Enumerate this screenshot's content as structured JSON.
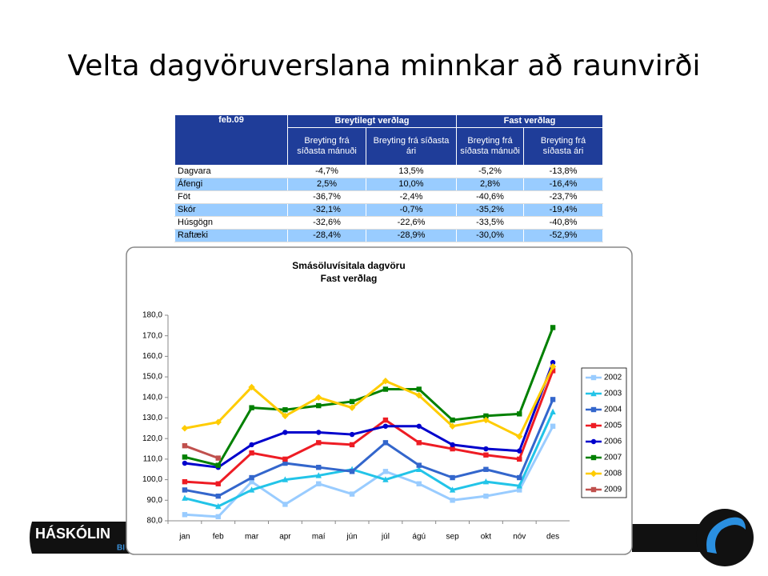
{
  "title": "Velta dagvöruverslana minnkar að raunvirði",
  "table": {
    "corner": "feb.09",
    "groups": [
      "Breytilegt verðlag",
      "Fast verðlag"
    ],
    "subheaders": [
      "Breyting frá síðasta mánuði",
      "Breyting frá síðasta ári",
      "Breyting frá síðasta mánuði",
      "Breyting frá síðasta ári"
    ],
    "rows": [
      [
        "Dagvara",
        "-4,7%",
        "13,5%",
        "-5,2%",
        "-13,8%"
      ],
      [
        "Áfengi",
        "2,5%",
        "10,0%",
        "2,8%",
        "-16,4%"
      ],
      [
        "Föt",
        "-36,7%",
        "-2,4%",
        "-40,6%",
        "-23,7%"
      ],
      [
        "Skór",
        "-32,1%",
        "-0,7%",
        "-35,2%",
        "-19,4%"
      ],
      [
        "Húsgögn",
        "-32,6%",
        "-22,6%",
        "-33,5%",
        "-40,8%"
      ],
      [
        "Raftæki",
        "-28,4%",
        "-28,9%",
        "-30,0%",
        "-52,9%"
      ]
    ]
  },
  "logo": {
    "name": "HÁSKÓLIN",
    "sub": "BI"
  },
  "chart_data": {
    "type": "line",
    "title": "Smásöluvísitala dagvöru",
    "subtitle": "Fast verðlag",
    "categories": [
      "jan",
      "feb",
      "mar",
      "apr",
      "maí",
      "jún",
      "júl",
      "ágú",
      "sep",
      "okt",
      "nóv",
      "des"
    ],
    "ylim": [
      80,
      180
    ],
    "yticks": [
      {
        "value": 80,
        "label": "80,0"
      },
      {
        "value": 90,
        "label": "90,0"
      },
      {
        "value": 100,
        "label": "100,0"
      },
      {
        "value": 110,
        "label": "110,0"
      },
      {
        "value": 120,
        "label": "120,0"
      },
      {
        "value": 130,
        "label": "130,0"
      },
      {
        "value": 140,
        "label": "140,0"
      },
      {
        "value": 150,
        "label": "150,0"
      },
      {
        "value": 160,
        "label": "160,0"
      },
      {
        "value": 170,
        "label": "170,0"
      },
      {
        "value": 180,
        "label": "180,0"
      }
    ],
    "grid": false,
    "legend": "right",
    "series": [
      {
        "name": "2002",
        "color": "#99ccff",
        "marker": "square",
        "values": [
          83,
          82,
          99,
          88,
          98,
          93,
          104,
          98,
          90,
          92,
          95,
          126
        ]
      },
      {
        "name": "2003",
        "color": "#22c4e8",
        "marker": "triangle",
        "values": [
          91,
          87,
          95,
          100,
          102,
          105,
          100,
          105,
          95,
          99,
          97,
          133
        ]
      },
      {
        "name": "2004",
        "color": "#3366cc",
        "marker": "square",
        "values": [
          95,
          92,
          101,
          108,
          106,
          104,
          118,
          107,
          101,
          105,
          101,
          139
        ]
      },
      {
        "name": "2005",
        "color": "#ee1c24",
        "marker": "square",
        "values": [
          99,
          98,
          113,
          110,
          118,
          117,
          129,
          118,
          115,
          112,
          110,
          153
        ]
      },
      {
        "name": "2006",
        "color": "#0000cc",
        "marker": "circle",
        "values": [
          108,
          106,
          117,
          123,
          123,
          122,
          126,
          126,
          117,
          115,
          114,
          157
        ]
      },
      {
        "name": "2007",
        "color": "#008000",
        "marker": "square",
        "values": [
          111,
          107,
          135,
          134,
          136,
          138,
          144,
          144,
          129,
          131,
          132,
          174
        ]
      },
      {
        "name": "2008",
        "color": "#ffcc00",
        "marker": "diamond",
        "values": [
          125,
          128,
          145,
          131,
          140,
          135,
          148,
          141,
          126,
          129,
          121,
          155
        ]
      },
      {
        "name": "2009",
        "color": "#c0504d",
        "marker": "square",
        "values": [
          116.5,
          110.5,
          null,
          null,
          null,
          null,
          null,
          null,
          null,
          null,
          null,
          null
        ]
      }
    ]
  }
}
